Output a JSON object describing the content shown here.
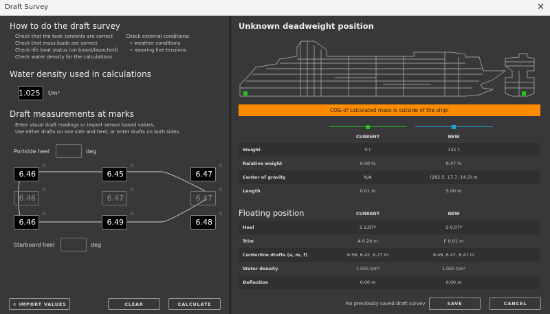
{
  "window": {
    "title": "Draft Survey",
    "close": "✕"
  },
  "howto": {
    "title": "How to do the draft survey",
    "checks": [
      "Check that the tank contents are correct",
      "Check that mass loads are correct",
      "Check life boat status (on board/launched)",
      "Check water density for the calculations"
    ],
    "external_title": "Check external conditions:",
    "external": [
      "• weather conditions",
      "• mooring line tensions"
    ]
  },
  "density": {
    "title": "Water density used in calculations",
    "value": "1.025",
    "unit": "t/m³"
  },
  "drafts": {
    "title": "Draft measurements at marks",
    "desc1": "Enter visual draft readings or import sensor based values.",
    "desc2": "Use either drafts on one side and heel, or enter drafts on both sides.",
    "portside_heel_label": "Portside heel",
    "portside_heel_value": "",
    "starboard_heel_label": "Starboard heel",
    "starboard_heel_value": "",
    "deg": "deg",
    "port": [
      "6.46",
      "6.45",
      "6.47"
    ],
    "center": [
      "6.46",
      "6.47",
      "6.47"
    ],
    "starboard": [
      "6.46",
      "6.49",
      "6.48"
    ]
  },
  "left_buttons": {
    "import": "IMPORT VALUES",
    "clear": "CLEAR",
    "calculate": "CALCULATE"
  },
  "deadweight": {
    "title": "Unknown deadweight position",
    "warning": "COG of calculated mass is outside of the ship!",
    "warning_color": "#ff8c00",
    "current_color": "#22c41a",
    "new_color": "#1ba3d6",
    "col_current": "CURRENT",
    "col_new": "NEW",
    "rows": [
      {
        "k": "Weight",
        "c": "0 t",
        "n": "141 t"
      },
      {
        "k": "Relative weight",
        "c": "0.00 %",
        "n": "0.47 %"
      },
      {
        "k": "Center of gravity",
        "c": "N/A",
        "n": "(282.5, 17.7, 14.3) m"
      },
      {
        "k": "Length",
        "c": "0.01 m",
        "n": "5.00 m"
      }
    ]
  },
  "floating": {
    "title": "Floating position",
    "col_current": "CURRENT",
    "col_new": "NEW",
    "rows": [
      {
        "k": "Heel",
        "c": "S 2.87º",
        "n": "S 0.07º"
      },
      {
        "k": "Trim",
        "c": "A 0.29 m",
        "n": "F 0.01 m"
      },
      {
        "k": "Centerline drafts (a, m, f)",
        "c": "6.56, 6.42, 6.27 m",
        "n": "6.46, 6.47, 6.47 m"
      },
      {
        "k": "Water density",
        "c": "1.025 t/m³",
        "n": "1.025 t/m³"
      },
      {
        "k": "Deflection",
        "c": "0.00 m",
        "n": "0.00 m"
      }
    ]
  },
  "footer": {
    "status": "No previously saved draft survey",
    "save": "SAVE",
    "cancel": "CANCEL"
  }
}
